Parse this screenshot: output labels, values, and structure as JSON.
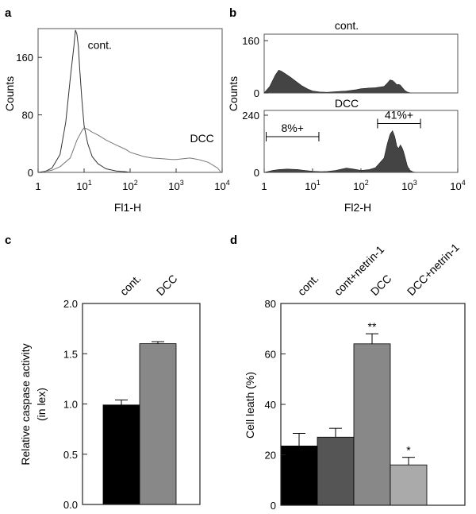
{
  "figure": {
    "panel_labels": [
      "a",
      "b",
      "c",
      "d"
    ]
  },
  "chart_data": [
    {
      "panel": "a",
      "type": "line",
      "xscale": "log",
      "xlim": [
        1,
        10000
      ],
      "ylim": [
        0,
        200
      ],
      "xlabel": "Fl1-H",
      "ylabel": "Counts",
      "x_ticks": [
        {
          "v": 1,
          "base": "1",
          "exp": ""
        },
        {
          "v": 10,
          "base": "10",
          "exp": "1"
        },
        {
          "v": 100,
          "base": "10",
          "exp": "2"
        },
        {
          "v": 1000,
          "base": "10",
          "exp": "3"
        },
        {
          "v": 10000,
          "base": "10",
          "exp": "4"
        }
      ],
      "y_ticks": [
        {
          "v": 0,
          "label": "0"
        },
        {
          "v": 80,
          "label": "80"
        },
        {
          "v": 160,
          "label": "160"
        }
      ],
      "series": [
        {
          "name": "cont.",
          "color": "#333333",
          "x": [
            1.05,
            1.5,
            2,
            3,
            4,
            5,
            6,
            6.5,
            7,
            7.5,
            8,
            9,
            10,
            12,
            15,
            20,
            30,
            50,
            80,
            100,
            200
          ],
          "y": [
            0,
            2,
            6,
            25,
            70,
            130,
            175,
            198,
            192,
            175,
            145,
            100,
            65,
            40,
            22,
            12,
            5,
            2,
            1,
            0,
            0
          ]
        },
        {
          "name": "DCC",
          "color": "#777777",
          "x": [
            1.1,
            2,
            3,
            5,
            7,
            9,
            10,
            12,
            15,
            20,
            30,
            50,
            80,
            100,
            200,
            300,
            500,
            800,
            1000,
            2000,
            3000,
            5000,
            8000,
            9500
          ],
          "y": [
            0,
            3,
            8,
            20,
            45,
            58,
            62,
            60,
            56,
            52,
            45,
            38,
            32,
            28,
            22,
            20,
            19,
            18,
            18,
            20,
            18,
            14,
            6,
            0
          ]
        }
      ],
      "annotations": [
        {
          "text": "cont.",
          "x": 12,
          "y": 172
        },
        {
          "text": "DCC",
          "x": 2000,
          "y": 42
        }
      ]
    },
    {
      "panel": "b",
      "subplots": [
        {
          "type": "area",
          "title": "cont.",
          "xscale": "log",
          "xlim": [
            1,
            10000
          ],
          "ylim": [
            0,
            180
          ],
          "y_ticks": [
            {
              "v": 0,
              "label": "0"
            },
            {
              "v": 160,
              "label": "160"
            }
          ],
          "color": "#444444",
          "x": [
            1,
            1.3,
            1.7,
            2,
            2.3,
            2.8,
            3.5,
            4.5,
            6,
            8,
            10,
            14,
            20,
            30,
            50,
            80,
            100,
            150,
            200,
            300,
            350,
            400,
            450,
            500,
            550,
            600,
            650,
            700,
            800,
            900,
            1000,
            1200,
            1500
          ],
          "y": [
            0,
            20,
            55,
            70,
            66,
            58,
            48,
            36,
            22,
            12,
            6,
            3,
            2,
            4,
            6,
            10,
            13,
            15,
            16,
            20,
            30,
            40,
            38,
            32,
            25,
            26,
            24,
            18,
            8,
            3,
            1,
            0,
            0
          ]
        },
        {
          "type": "area",
          "title": "DCC",
          "xscale": "log",
          "xlim": [
            1,
            10000
          ],
          "ylim": [
            0,
            260
          ],
          "y_ticks": [
            {
              "v": 0,
              "label": "0"
            },
            {
              "v": 240,
              "label": "240"
            }
          ],
          "color": "#444444",
          "x": [
            1,
            1.5,
            2,
            3,
            5,
            7,
            10,
            15,
            20,
            30,
            50,
            70,
            100,
            150,
            200,
            300,
            350,
            400,
            450,
            500,
            550,
            600,
            650,
            700,
            750,
            800,
            900,
            1000,
            1200,
            1500
          ],
          "y": [
            0,
            8,
            12,
            14,
            12,
            8,
            5,
            3,
            4,
            8,
            18,
            14,
            8,
            12,
            20,
            60,
            120,
            160,
            175,
            150,
            110,
            100,
            115,
            105,
            90,
            70,
            30,
            10,
            2,
            0
          ]
        }
      ],
      "xlabel": "Fl2-H",
      "ylabel": "Counts",
      "x_ticks": [
        {
          "v": 1,
          "base": "1",
          "exp": ""
        },
        {
          "v": 10,
          "base": "10",
          "exp": "1"
        },
        {
          "v": 100,
          "base": "10",
          "exp": "2"
        },
        {
          "v": 1000,
          "base": "10",
          "exp": "3"
        },
        {
          "v": 10000,
          "base": "10",
          "exp": "4"
        }
      ],
      "gates": [
        {
          "label": "8%+",
          "x_start": 1.1,
          "x_end": 13.5,
          "y": 150
        },
        {
          "label": "41%+",
          "x_start": 220,
          "x_end": 1700,
          "y": 205
        }
      ]
    },
    {
      "panel": "c",
      "type": "bar",
      "categories": [
        "cont.",
        "DCC"
      ],
      "values": [
        0.99,
        1.6
      ],
      "errors": [
        0.05,
        0.02
      ],
      "colors": [
        "#000000",
        "#888888"
      ],
      "ylim": [
        0,
        2.0
      ],
      "y_ticks": [
        "0.0",
        "0.5",
        "1.0",
        "1.5",
        "2.0"
      ],
      "ylabel": "Relative caspase activity",
      "ylabel2": "(in lex)"
    },
    {
      "panel": "d",
      "type": "bar",
      "categories": [
        "cont.",
        "cont+netrin-1",
        "DCC",
        "DCC+netrin-1"
      ],
      "values": [
        23.5,
        27,
        64,
        16
      ],
      "errors": [
        5,
        3.5,
        4,
        3
      ],
      "colors": [
        "#000000",
        "#555555",
        "#888888",
        "#aaaaaa"
      ],
      "significance": [
        "",
        "",
        "**",
        "*"
      ],
      "ylim": [
        0,
        80
      ],
      "y_ticks": [
        "0",
        "20",
        "40",
        "60",
        "80"
      ],
      "ylabel": "Cell  leath (%)"
    }
  ]
}
